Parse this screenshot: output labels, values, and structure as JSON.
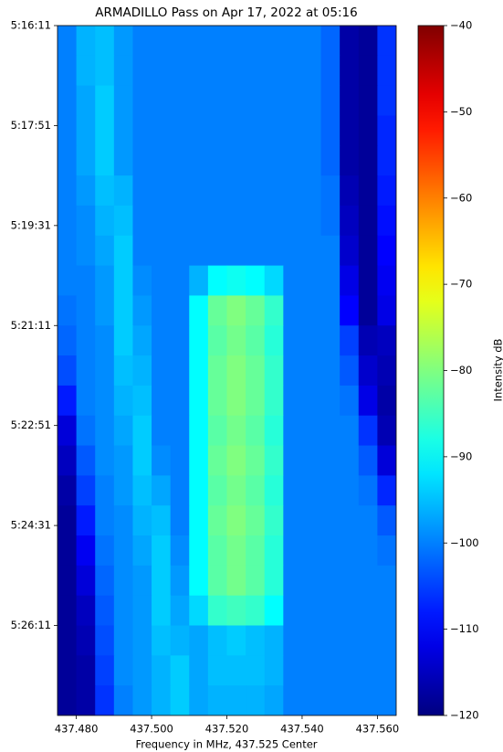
{
  "chart_data": {
    "type": "heatmap",
    "title": "ARMADILLO Pass on Apr 17, 2022 at 05:16",
    "x_label": "Frequency in MHz, 437.525 Center",
    "colorbar_label": "Intensity dB",
    "colormap": "jet",
    "xlim": [
      437.475,
      437.565
    ],
    "xticks": [
      {
        "value": 437.48,
        "label": "437.480"
      },
      {
        "value": 437.5,
        "label": "437.500"
      },
      {
        "value": 437.52,
        "label": "437.520"
      },
      {
        "value": 437.54,
        "label": "437.540"
      },
      {
        "value": 437.56,
        "label": "437.560"
      }
    ],
    "ylim": [
      0,
      690
    ],
    "yticks": [
      {
        "value": 0,
        "label": "5:16:11"
      },
      {
        "value": 100,
        "label": "5:17:51"
      },
      {
        "value": 200,
        "label": "5:19:31"
      },
      {
        "value": 300,
        "label": "5:21:11"
      },
      {
        "value": 400,
        "label": "5:22:51"
      },
      {
        "value": 500,
        "label": "5:24:31"
      },
      {
        "value": 600,
        "label": "5:26:11"
      }
    ],
    "clim": [
      -120,
      -40
    ],
    "cticks": [
      {
        "value": -40,
        "label": "−40"
      },
      {
        "value": -50,
        "label": "−50"
      },
      {
        "value": -60,
        "label": "−60"
      },
      {
        "value": -70,
        "label": "−70"
      },
      {
        "value": -80,
        "label": "−80"
      },
      {
        "value": -90,
        "label": "−90"
      },
      {
        "value": -100,
        "label": "−100"
      },
      {
        "value": -110,
        "label": "−110"
      },
      {
        "value": -120,
        "label": "−120"
      }
    ],
    "x": [
      437.4775,
      437.4825,
      437.4875,
      437.4925,
      437.4975,
      437.5025,
      437.5075,
      437.5125,
      437.5175,
      437.5225,
      437.5275,
      437.5325,
      437.5375,
      437.5425,
      437.5475,
      437.5525,
      437.5575,
      437.5625
    ],
    "y": [
      15,
      45,
      75,
      105,
      135,
      165,
      195,
      225,
      255,
      285,
      315,
      345,
      375,
      405,
      435,
      465,
      495,
      525,
      555,
      585,
      615,
      645,
      675
    ],
    "z": [
      [
        -100,
        -96,
        -95,
        -98,
        -100,
        -100,
        -100,
        -100,
        -100,
        -100,
        -100,
        -100,
        -100,
        -100,
        -102,
        -117,
        -118,
        -106
      ],
      [
        -100,
        -96,
        -95,
        -98,
        -100,
        -100,
        -100,
        -100,
        -100,
        -100,
        -100,
        -100,
        -100,
        -100,
        -102,
        -117,
        -118,
        -106
      ],
      [
        -100,
        -97,
        -94,
        -98,
        -100,
        -100,
        -100,
        -100,
        -100,
        -100,
        -100,
        -100,
        -100,
        -100,
        -102,
        -117,
        -118,
        -106
      ],
      [
        -100,
        -97,
        -94,
        -98,
        -100,
        -100,
        -100,
        -100,
        -100,
        -100,
        -100,
        -100,
        -100,
        -100,
        -102,
        -117,
        -118,
        -107
      ],
      [
        -100,
        -97,
        -94,
        -98,
        -100,
        -100,
        -100,
        -100,
        -100,
        -100,
        -100,
        -100,
        -100,
        -100,
        -102,
        -117,
        -118,
        -107
      ],
      [
        -100,
        -98,
        -95,
        -96,
        -100,
        -100,
        -100,
        -100,
        -100,
        -100,
        -100,
        -100,
        -100,
        -100,
        -101,
        -116,
        -118,
        -108
      ],
      [
        -100,
        -99,
        -96,
        -95,
        -100,
        -100,
        -100,
        -100,
        -100,
        -100,
        -100,
        -100,
        -100,
        -100,
        -101,
        -115,
        -118,
        -109
      ],
      [
        -100,
        -99,
        -97,
        -94,
        -100,
        -100,
        -100,
        -100,
        -100,
        -100,
        -100,
        -100,
        -100,
        -100,
        -100,
        -114,
        -118,
        -110
      ],
      [
        -100,
        -100,
        -98,
        -94,
        -99,
        -100,
        -100,
        -96,
        -90,
        -89,
        -90,
        -93,
        -100,
        -100,
        -100,
        -112,
        -118,
        -111
      ],
      [
        -101,
        -100,
        -98,
        -94,
        -98,
        -100,
        -100,
        -90,
        -82,
        -80,
        -82,
        -86,
        -100,
        -100,
        -100,
        -110,
        -118,
        -112
      ],
      [
        -102,
        -100,
        -99,
        -94,
        -97,
        -100,
        -100,
        -90,
        -83,
        -81,
        -83,
        -87,
        -100,
        -100,
        -100,
        -105,
        -116,
        -115
      ],
      [
        -104,
        -100,
        -99,
        -95,
        -96,
        -100,
        -100,
        -90,
        -82,
        -80,
        -82,
        -86,
        -100,
        -100,
        -100,
        -103,
        -114,
        -116
      ],
      [
        -108,
        -100,
        -99,
        -96,
        -95,
        -100,
        -100,
        -90,
        -82,
        -80,
        -82,
        -86,
        -100,
        -100,
        -100,
        -101,
        -112,
        -117
      ],
      [
        -113,
        -101,
        -99,
        -97,
        -94,
        -100,
        -100,
        -90,
        -83,
        -81,
        -83,
        -87,
        -100,
        -100,
        -100,
        -100,
        -106,
        -116
      ],
      [
        -115,
        -103,
        -99,
        -98,
        -94,
        -99,
        -100,
        -90,
        -82,
        -80,
        -82,
        -86,
        -100,
        -100,
        -100,
        -100,
        -103,
        -113
      ],
      [
        -117,
        -105,
        -100,
        -98,
        -95,
        -97,
        -100,
        -90,
        -83,
        -81,
        -83,
        -87,
        -100,
        -100,
        -100,
        -100,
        -101,
        -107
      ],
      [
        -118,
        -108,
        -100,
        -99,
        -96,
        -95,
        -100,
        -90,
        -82,
        -80,
        -82,
        -86,
        -100,
        -100,
        -100,
        -100,
        -100,
        -103
      ],
      [
        -118,
        -111,
        -101,
        -99,
        -97,
        -94,
        -99,
        -90,
        -83,
        -81,
        -83,
        -87,
        -100,
        -100,
        -100,
        -100,
        -100,
        -101
      ],
      [
        -118,
        -113,
        -102,
        -99,
        -98,
        -94,
        -98,
        -90,
        -83,
        -81,
        -83,
        -87,
        -100,
        -100,
        -100,
        -100,
        -100,
        -100
      ],
      [
        -118,
        -115,
        -103,
        -99,
        -98,
        -94,
        -97,
        -93,
        -86,
        -85,
        -86,
        -90,
        -100,
        -100,
        -100,
        -100,
        -100,
        -100
      ],
      [
        -118,
        -116,
        -104,
        -99,
        -98,
        -95,
        -96,
        -97,
        -95,
        -94,
        -95,
        -96,
        -100,
        -100,
        -100,
        -100,
        -100,
        -100
      ],
      [
        -118,
        -117,
        -105,
        -99,
        -98,
        -96,
        -94,
        -97,
        -95,
        -95,
        -95,
        -96,
        -100,
        -100,
        -100,
        -100,
        -100,
        -100
      ],
      [
        -118,
        -117,
        -106,
        -100,
        -98,
        -96,
        -94,
        -97,
        -96,
        -96,
        -96,
        -97,
        -100,
        -100,
        -100,
        -100,
        -100,
        -100
      ]
    ]
  }
}
